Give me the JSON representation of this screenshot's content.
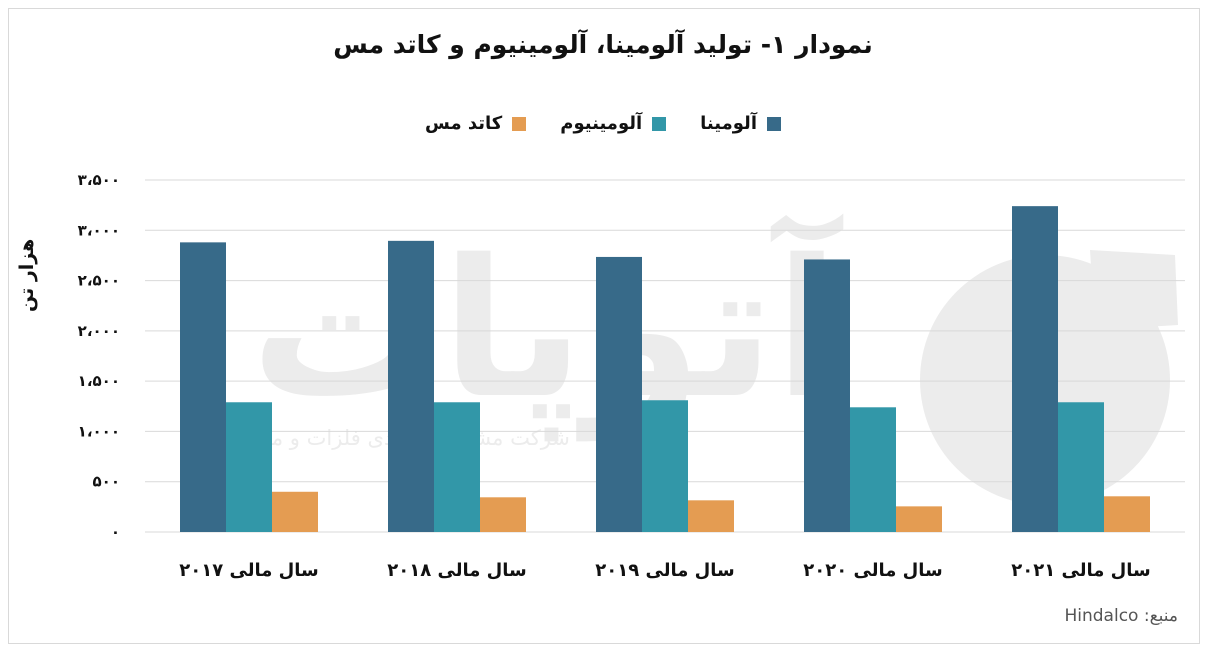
{
  "title": "نمودار ۱- تولید آلومینا، آلومینیوم و کاتد مس",
  "source": "منبع: Hindalco",
  "watermark": {
    "logo_text": "آتوپات",
    "subtitle": "شرکت مشاور اقتصادی فلزات و مواد آرمان"
  },
  "colors": {
    "alumina": "#376a89",
    "aluminium": "#3297a8",
    "copper_cathode": "#e49c52",
    "grid": "#d9d9d9",
    "watermark": "#ececec"
  },
  "chart_data": {
    "type": "bar",
    "title": "نمودار ۱- تولید آلومینا، آلومینیوم و کاتد مس",
    "ylabel": "هزار تن",
    "xlabel": "",
    "categories": [
      "سال مالی ۲۰۱۷",
      "سال مالی ۲۰۱۸",
      "سال مالی ۲۰۱۹",
      "سال مالی ۲۰۲۰",
      "سال مالی ۲۰۲۱"
    ],
    "series": [
      {
        "name": "آلومینا",
        "color": "#376a89",
        "values": [
          2880,
          2895,
          2735,
          2710,
          3240
        ]
      },
      {
        "name": "آلومینیوم",
        "color": "#3297a8",
        "values": [
          1290,
          1290,
          1310,
          1240,
          1290
        ]
      },
      {
        "name": "کاتد مس",
        "color": "#e49c52",
        "values": [
          400,
          345,
          315,
          255,
          355
        ]
      }
    ],
    "ylim": [
      0,
      3500
    ],
    "yticks": [
      0,
      500,
      1000,
      1500,
      2000,
      2500,
      3000,
      3500
    ],
    "ytick_labels": [
      "۰",
      "۵۰۰",
      "۱،۰۰۰",
      "۱،۵۰۰",
      "۲،۰۰۰",
      "۲،۵۰۰",
      "۳،۰۰۰",
      "۳،۵۰۰"
    ],
    "grid": true,
    "legend_position": "top"
  }
}
